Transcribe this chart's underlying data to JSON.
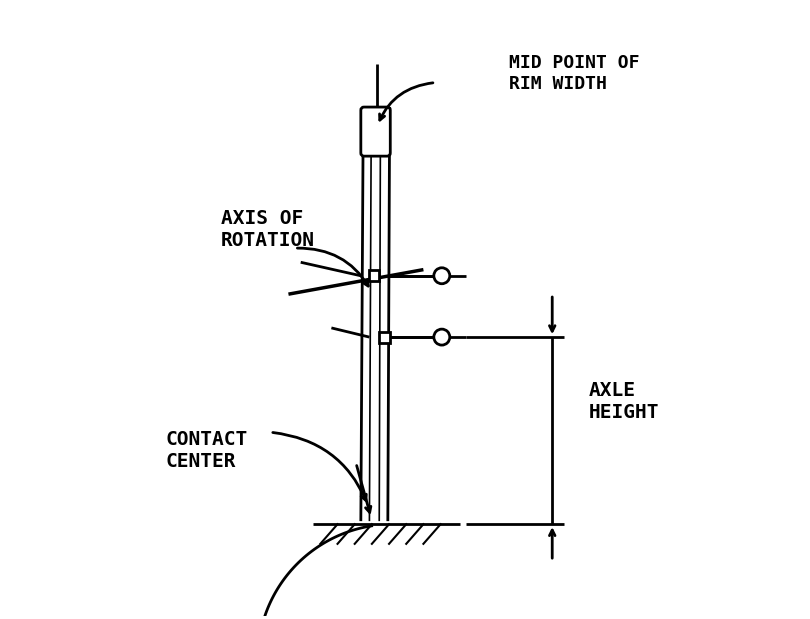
{
  "bg_color": "#ffffff",
  "line_color": "#000000",
  "figsize": [
    8.1,
    6.19
  ],
  "dpi": 100,
  "labels": {
    "mid_point": "MID POINT OF\nRIM WIDTH",
    "axis_of_rotation": "AXIS OF\nROTATION",
    "contact_center": "CONTACT\nCENTER",
    "axle_height": "AXLE\nHEIGHT"
  },
  "font_size": 13,
  "font_family": "monospace"
}
